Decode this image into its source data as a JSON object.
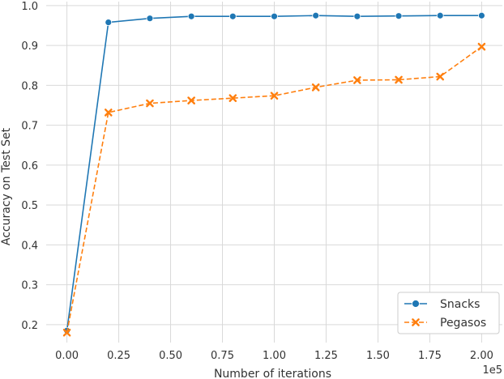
{
  "chart_data": {
    "type": "line",
    "xlabel": "Number of iterations",
    "ylabel": "Accuracy on Test Set",
    "x_offset_label": "1e5",
    "xlim": [
      -0.1,
      2.1
    ],
    "ylim": [
      0.155,
      1.01
    ],
    "grid": true,
    "legend_position": "lower-right",
    "x_ticks": [
      0.0,
      0.25,
      0.5,
      0.75,
      1.0,
      1.25,
      1.5,
      1.75,
      2.0
    ],
    "x_tick_labels": [
      "0.00",
      "0.25",
      "0.50",
      "0.75",
      "1.00",
      "1.25",
      "1.50",
      "1.75",
      "2.00"
    ],
    "y_ticks": [
      0.2,
      0.3,
      0.4,
      0.5,
      0.6,
      0.7,
      0.8,
      0.9,
      1.0
    ],
    "y_tick_labels": [
      "0.2",
      "0.3",
      "0.4",
      "0.5",
      "0.6",
      "0.7",
      "0.8",
      "0.9",
      "1.0"
    ],
    "x": [
      0.0,
      0.2,
      0.4,
      0.6,
      0.8,
      1.0,
      1.2,
      1.4,
      1.6,
      1.8,
      2.0
    ],
    "series": [
      {
        "name": "Snacks",
        "marker": "circle",
        "linestyle": "solid",
        "color": "#1f77b4",
        "values": [
          0.185,
          0.958,
          0.968,
          0.973,
          0.973,
          0.973,
          0.975,
          0.973,
          0.974,
          0.975,
          0.975
        ]
      },
      {
        "name": "Pegasos",
        "marker": "x",
        "linestyle": "dashed",
        "color": "#ff7f0e",
        "values": [
          0.18,
          0.732,
          0.755,
          0.762,
          0.768,
          0.774,
          0.795,
          0.813,
          0.814,
          0.822,
          0.897
        ]
      }
    ]
  }
}
